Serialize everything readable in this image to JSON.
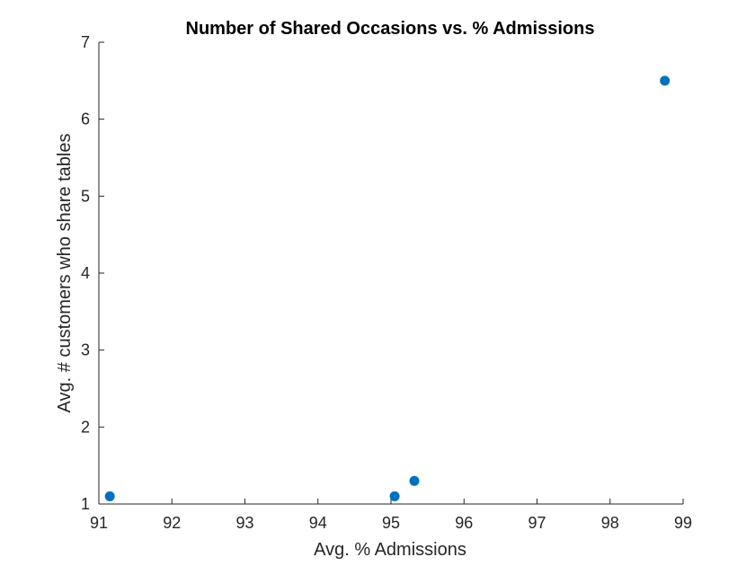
{
  "chart_data": {
    "type": "scatter",
    "title": "Number of Shared Occasions vs. % Admissions",
    "xlabel": "Avg. % Admissions",
    "ylabel": "Avg. # customers who share tables",
    "xlim": [
      91,
      99
    ],
    "ylim": [
      1,
      7
    ],
    "xticks": [
      91,
      92,
      93,
      94,
      95,
      96,
      97,
      98,
      99
    ],
    "yticks": [
      1,
      2,
      3,
      4,
      5,
      6,
      7
    ],
    "grid": false,
    "marker_color": "#0072BD",
    "points": [
      {
        "x": 91.15,
        "y": 1.1
      },
      {
        "x": 95.05,
        "y": 1.1
      },
      {
        "x": 95.32,
        "y": 1.3
      },
      {
        "x": 98.75,
        "y": 6.5
      }
    ]
  }
}
